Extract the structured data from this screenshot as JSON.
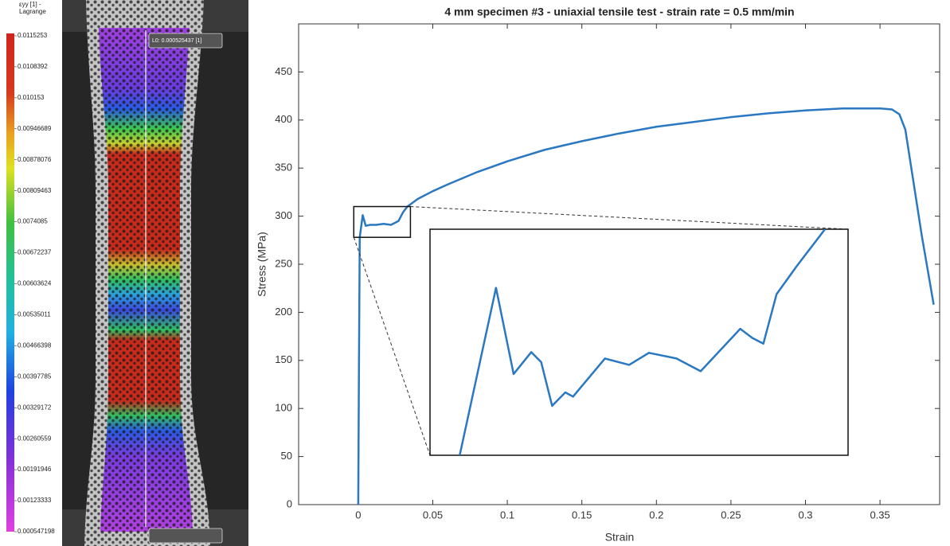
{
  "dic_image": {
    "colorbar_title": [
      "εyy [1] -",
      "Lagrange"
    ],
    "colorbar_labels": [
      "0.0115253",
      "0.0108392",
      "0.010153",
      "0.00946689",
      "0.00878076",
      "0.00809463",
      "0.0074085",
      "0.00672237",
      "0.00603624",
      "0.00535011",
      "0.00466398",
      "0.00397785",
      "0.00329172",
      "0.00260559",
      "0.00191946",
      "0.00123333",
      "0.000547198"
    ],
    "gauge_label": "L0: 0.000525437 [1]"
  },
  "chart_data": [
    {
      "type": "line",
      "title": "4 mm specimen #3 - uniaxial tensile test - strain rate = 0.5 mm/min",
      "xlabel": "Strain",
      "ylabel": "Stress (MPa)",
      "color": "#2a78c2",
      "xlim": [
        -0.04,
        0.39
      ],
      "ylim": [
        0,
        500
      ],
      "xticks": [
        0,
        0.05,
        0.1,
        0.15,
        0.2,
        0.25,
        0.3,
        0.35
      ],
      "yticks": [
        0,
        50,
        100,
        150,
        200,
        250,
        300,
        350,
        400,
        450
      ],
      "x": [
        0,
        0.0005,
        0.001,
        0.003,
        0.005,
        0.008,
        0.012,
        0.017,
        0.022,
        0.027,
        0.03,
        0.033,
        0.04,
        0.05,
        0.06,
        0.08,
        0.1,
        0.125,
        0.15,
        0.175,
        0.2,
        0.225,
        0.25,
        0.275,
        0.3,
        0.325,
        0.35,
        0.358,
        0.363,
        0.367,
        0.372,
        0.378,
        0.383,
        0.386
      ],
      "values": [
        0,
        150,
        278,
        301,
        290,
        291,
        291,
        292,
        291,
        295,
        304,
        310,
        318,
        326,
        333,
        346,
        357,
        369,
        378,
        386,
        393,
        398,
        403,
        407,
        410,
        412,
        412,
        411,
        406,
        390,
        340,
        280,
        235,
        208
      ]
    },
    {
      "type": "line",
      "color": "#2a78c2",
      "xlim": [
        -0.003,
        0.035
      ],
      "ylim": [
        278,
        310
      ],
      "x": [
        -0.0003,
        0.003,
        0.0046,
        0.0062,
        0.0071,
        0.0081,
        0.0093,
        0.01,
        0.0129,
        0.0151,
        0.0169,
        0.0194,
        0.0216,
        0.0234,
        0.0252,
        0.0263,
        0.0273,
        0.0285,
        0.0303,
        0.0329
      ],
      "values": [
        278,
        301.7,
        289.5,
        292.6,
        291.2,
        285,
        286.9,
        286.3,
        291.7,
        290.8,
        292.5,
        291.7,
        289.9,
        292.9,
        295.9,
        294.6,
        293.8,
        300.8,
        304.7,
        310
      ]
    }
  ]
}
